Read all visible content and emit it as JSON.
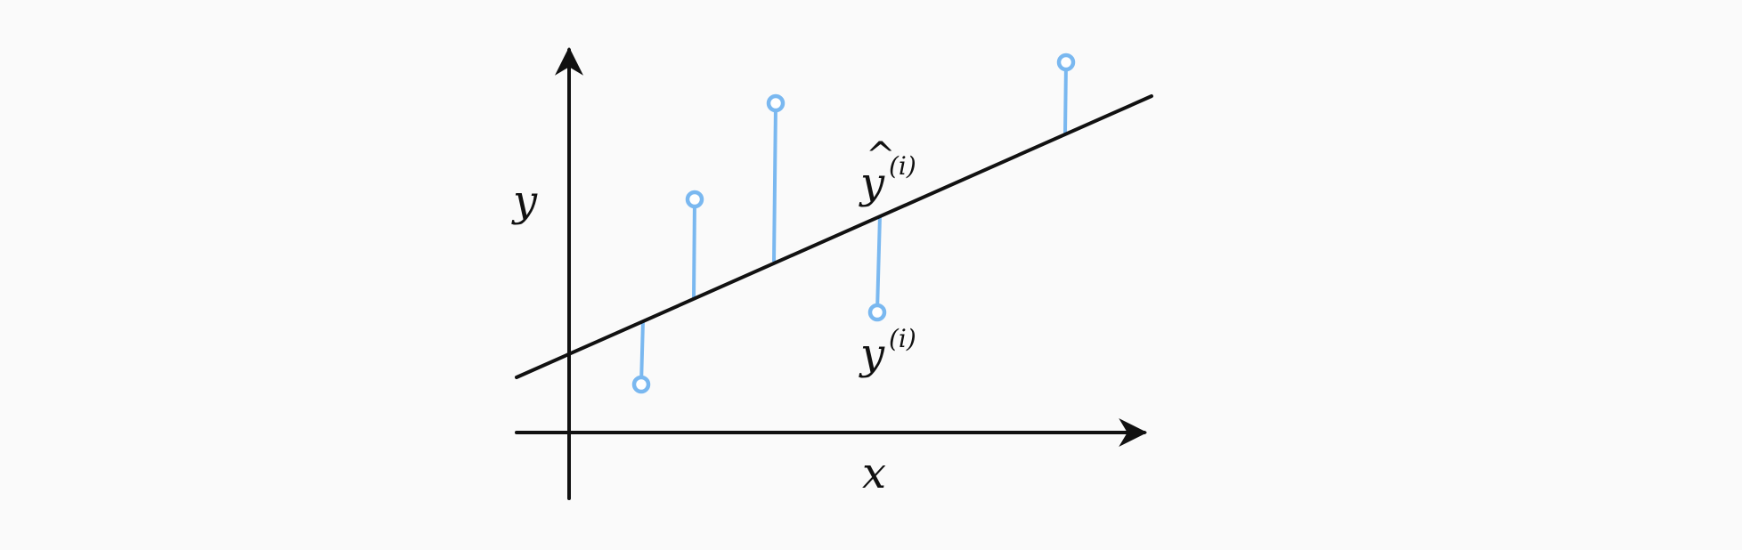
{
  "diagram": {
    "x_axis_label": "x",
    "y_axis_label": "y",
    "predicted_label": {
      "base": "y",
      "hat": "^",
      "superscript": "(i)"
    },
    "actual_label": {
      "base": "y",
      "superscript": "(i)"
    },
    "colors": {
      "axis": "#111111",
      "regression_line": "#111111",
      "residual": "#7ab8f0",
      "point_stroke": "#7ab8f0",
      "point_fill": "#ffffff",
      "background": "#fafafa"
    }
  }
}
